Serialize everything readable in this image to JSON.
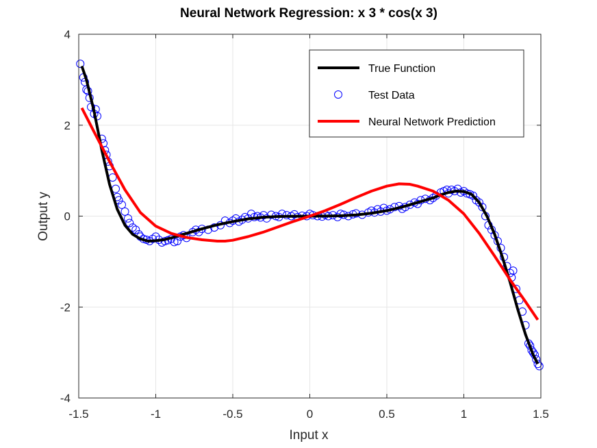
{
  "chart_data": {
    "type": "line",
    "title": "Neural Network Regression: x  3 * cos(x  3)",
    "xlabel": "Input x",
    "ylabel": "Output y",
    "xlim": [
      -1.5,
      1.5
    ],
    "ylim": [
      -4,
      4
    ],
    "x_ticks": [
      -1.5,
      -1,
      -0.5,
      0,
      0.5,
      1,
      1.5
    ],
    "x_tick_labels": [
      "-1.5",
      "-1",
      "-0.5",
      "0",
      "0.5",
      "1",
      "1.5"
    ],
    "y_ticks": [
      -4,
      -2,
      0,
      2,
      4
    ],
    "y_tick_labels": [
      "-4",
      "-2",
      "0",
      "2",
      "4"
    ],
    "grid": true,
    "legend_position": "top-right",
    "series": [
      {
        "name": "True Function",
        "kind": "line",
        "color": "#000000",
        "x": [
          -1.48,
          -1.45,
          -1.4,
          -1.35,
          -1.3,
          -1.25,
          -1.2,
          -1.15,
          -1.1,
          -1.05,
          -1.0,
          -0.95,
          -0.9,
          -0.85,
          -0.8,
          -0.7,
          -0.6,
          -0.5,
          -0.4,
          -0.3,
          -0.2,
          -0.1,
          0.0,
          0.1,
          0.2,
          0.3,
          0.4,
          0.5,
          0.6,
          0.7,
          0.8,
          0.85,
          0.9,
          0.95,
          1.0,
          1.05,
          1.1,
          1.15,
          1.2,
          1.25,
          1.3,
          1.35,
          1.4,
          1.45,
          1.48
        ],
        "values": [
          3.3,
          3.0,
          2.3,
          1.45,
          0.7,
          0.15,
          -0.2,
          -0.4,
          -0.5,
          -0.55,
          -0.54,
          -0.52,
          -0.48,
          -0.43,
          -0.38,
          -0.28,
          -0.19,
          -0.12,
          -0.06,
          -0.025,
          -0.008,
          -0.001,
          0.0,
          0.001,
          0.008,
          0.027,
          0.064,
          0.12,
          0.2,
          0.3,
          0.4,
          0.47,
          0.52,
          0.55,
          0.54,
          0.48,
          0.3,
          0.0,
          -0.4,
          -0.9,
          -1.45,
          -2.05,
          -2.6,
          -3.05,
          -3.25
        ]
      },
      {
        "name": "Test Data",
        "kind": "scatter",
        "color": "#0000ff",
        "x": [
          -1.49,
          -1.47,
          -1.46,
          -1.45,
          -1.44,
          -1.43,
          -1.42,
          -1.4,
          -1.39,
          -1.38,
          -1.35,
          -1.34,
          -1.33,
          -1.32,
          -1.31,
          -1.3,
          -1.28,
          -1.26,
          -1.25,
          -1.24,
          -1.22,
          -1.2,
          -1.18,
          -1.17,
          -1.15,
          -1.13,
          -1.11,
          -1.1,
          -1.08,
          -1.06,
          -1.04,
          -1.02,
          -1.0,
          -0.98,
          -0.96,
          -0.94,
          -0.92,
          -0.9,
          -0.88,
          -0.86,
          -0.84,
          -0.82,
          -0.8,
          -0.76,
          -0.74,
          -0.72,
          -0.7,
          -0.66,
          -0.62,
          -0.58,
          -0.55,
          -0.52,
          -0.5,
          -0.48,
          -0.46,
          -0.44,
          -0.42,
          -0.4,
          -0.38,
          -0.36,
          -0.34,
          -0.32,
          -0.3,
          -0.28,
          -0.25,
          -0.22,
          -0.2,
          -0.18,
          -0.15,
          -0.12,
          -0.1,
          -0.08,
          -0.05,
          -0.02,
          0.0,
          0.02,
          0.05,
          0.08,
          0.1,
          0.12,
          0.15,
          0.18,
          0.2,
          0.22,
          0.25,
          0.28,
          0.3,
          0.34,
          0.38,
          0.4,
          0.42,
          0.44,
          0.46,
          0.48,
          0.5,
          0.52,
          0.55,
          0.58,
          0.6,
          0.62,
          0.65,
          0.68,
          0.7,
          0.72,
          0.75,
          0.78,
          0.8,
          0.82,
          0.85,
          0.87,
          0.89,
          0.9,
          0.92,
          0.94,
          0.96,
          0.98,
          1.0,
          1.02,
          1.04,
          1.06,
          1.08,
          1.1,
          1.12,
          1.14,
          1.16,
          1.18,
          1.2,
          1.22,
          1.24,
          1.26,
          1.28,
          1.3,
          1.31,
          1.32,
          1.34,
          1.36,
          1.38,
          1.4,
          1.42,
          1.43,
          1.44,
          1.45,
          1.46,
          1.47,
          1.48,
          1.49
        ],
        "values": [
          3.35,
          3.05,
          2.95,
          2.78,
          2.75,
          2.6,
          2.4,
          2.25,
          2.35,
          2.2,
          1.7,
          1.6,
          1.45,
          1.35,
          1.2,
          1.1,
          0.85,
          0.6,
          0.42,
          0.35,
          0.25,
          0.1,
          -0.05,
          -0.15,
          -0.25,
          -0.3,
          -0.4,
          -0.45,
          -0.5,
          -0.52,
          -0.55,
          -0.5,
          -0.45,
          -0.52,
          -0.58,
          -0.55,
          -0.53,
          -0.5,
          -0.57,
          -0.55,
          -0.45,
          -0.42,
          -0.48,
          -0.35,
          -0.3,
          -0.35,
          -0.28,
          -0.3,
          -0.25,
          -0.2,
          -0.1,
          -0.15,
          -0.1,
          -0.05,
          -0.12,
          -0.08,
          -0.02,
          -0.05,
          0.05,
          -0.02,
          0.0,
          -0.03,
          0.02,
          -0.05,
          0.03,
          0.0,
          -0.02,
          0.05,
          0.02,
          0.0,
          0.04,
          -0.02,
          0.01,
          0.0,
          0.05,
          0.02,
          0.0,
          -0.01,
          0.03,
          0.0,
          0.02,
          -0.02,
          0.05,
          0.03,
          0.0,
          0.04,
          0.06,
          0.03,
          0.08,
          0.12,
          0.08,
          0.15,
          0.1,
          0.18,
          0.12,
          0.15,
          0.2,
          0.22,
          0.16,
          0.2,
          0.25,
          0.3,
          0.27,
          0.35,
          0.38,
          0.35,
          0.4,
          0.45,
          0.52,
          0.55,
          0.58,
          0.5,
          0.58,
          0.55,
          0.6,
          0.52,
          0.55,
          0.5,
          0.48,
          0.45,
          0.35,
          0.3,
          0.2,
          0.0,
          -0.2,
          -0.3,
          -0.42,
          -0.55,
          -0.7,
          -0.9,
          -1.1,
          -1.25,
          -1.35,
          -1.2,
          -1.6,
          -1.85,
          -2.1,
          -2.4,
          -2.8,
          -2.85,
          -2.95,
          -3.0,
          -3.05,
          -3.15,
          -3.25,
          -3.3
        ]
      },
      {
        "name": "Neural Network Prediction",
        "kind": "line",
        "color": "#ff0000",
        "x": [
          -1.48,
          -1.4,
          -1.3,
          -1.2,
          -1.1,
          -1.0,
          -0.9,
          -0.8,
          -0.7,
          -0.6,
          -0.55,
          -0.5,
          -0.4,
          -0.3,
          -0.2,
          -0.1,
          0.0,
          0.1,
          0.2,
          0.3,
          0.4,
          0.5,
          0.58,
          0.65,
          0.7,
          0.8,
          0.9,
          1.0,
          1.1,
          1.2,
          1.3,
          1.4,
          1.48
        ],
        "values": [
          2.38,
          1.85,
          1.2,
          0.58,
          0.08,
          -0.22,
          -0.38,
          -0.47,
          -0.52,
          -0.55,
          -0.55,
          -0.53,
          -0.45,
          -0.35,
          -0.23,
          -0.11,
          0.0,
          0.12,
          0.26,
          0.41,
          0.55,
          0.66,
          0.71,
          0.7,
          0.66,
          0.55,
          0.35,
          0.05,
          -0.38,
          -0.88,
          -1.4,
          -1.88,
          -2.28
        ]
      }
    ]
  }
}
